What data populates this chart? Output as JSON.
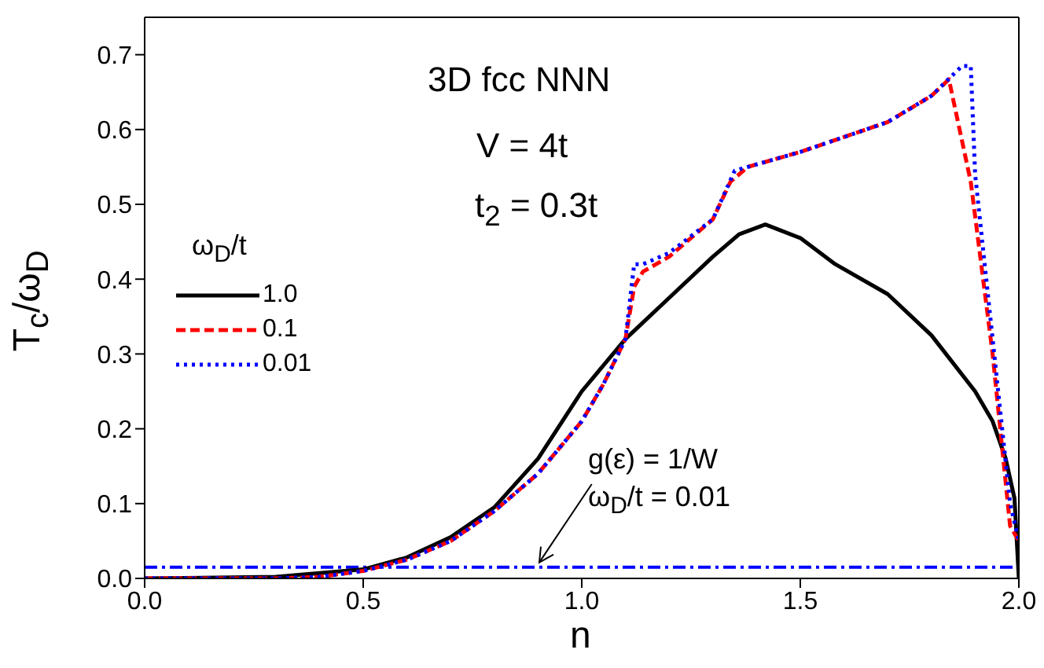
{
  "chart_data": {
    "type": "line",
    "xlabel": "n",
    "ylabel": "T$_{c}$/ω$_{D}$",
    "legend_title": "ω$_{D}$/t",
    "legend": "left",
    "marker": "none",
    "xlim": [
      0,
      2
    ],
    "xticks": [
      {
        "value": 0,
        "label": "0.0"
      },
      {
        "value": 0.5,
        "label": "0.5"
      },
      {
        "value": 1,
        "label": "1.0"
      },
      {
        "value": 1.5,
        "label": "1.5"
      },
      {
        "value": 2,
        "label": "2.0"
      }
    ],
    "ylim": [
      0,
      0.75
    ],
    "yticks": [
      {
        "value": 0,
        "label": "0.0"
      },
      0.1,
      0.2,
      0.3,
      0.4,
      0.5,
      0.6,
      0.7
    ],
    "series": [
      {
        "name": "1.0",
        "color": "#000000",
        "line_style": "solid",
        "x": [
          0,
          0.3,
          0.5,
          0.6,
          0.7,
          0.8,
          0.9,
          1.0,
          1.1,
          1.2,
          1.3,
          1.36,
          1.42,
          1.5,
          1.58,
          1.7,
          1.8,
          1.9,
          1.94,
          1.97,
          1.99,
          2.0
        ],
        "values": [
          0,
          0.002,
          0.012,
          0.028,
          0.055,
          0.095,
          0.16,
          0.25,
          0.32,
          0.375,
          0.43,
          0.46,
          0.473,
          0.455,
          0.42,
          0.38,
          0.325,
          0.25,
          0.21,
          0.16,
          0.107,
          0
        ]
      },
      {
        "name": "0.1",
        "color": "#ff0000",
        "line_style": "dashed",
        "x": [
          0,
          0.3,
          0.4,
          0.5,
          0.6,
          0.7,
          0.8,
          0.9,
          1.0,
          1.05,
          1.1,
          1.12,
          1.14,
          1.2,
          1.3,
          1.34,
          1.38,
          1.5,
          1.6,
          1.7,
          1.8,
          1.84,
          1.89,
          1.94,
          1.98,
          2.0
        ],
        "values": [
          0,
          0,
          0.002,
          0.01,
          0.025,
          0.05,
          0.09,
          0.14,
          0.21,
          0.26,
          0.32,
          0.39,
          0.41,
          0.43,
          0.48,
          0.53,
          0.55,
          0.57,
          0.59,
          0.61,
          0.645,
          0.667,
          0.53,
          0.3,
          0.07,
          0.05
        ]
      },
      {
        "name": "0.01",
        "color": "#0000ff",
        "line_style": "dotted",
        "x": [
          0,
          0.3,
          0.4,
          0.5,
          0.6,
          0.7,
          0.8,
          0.9,
          1.0,
          1.05,
          1.1,
          1.12,
          1.14,
          1.2,
          1.3,
          1.35,
          1.38,
          1.5,
          1.6,
          1.7,
          1.8,
          1.87,
          1.89,
          1.9,
          1.94,
          1.98,
          2.0
        ],
        "values": [
          0,
          0,
          0.002,
          0.01,
          0.025,
          0.05,
          0.09,
          0.14,
          0.21,
          0.26,
          0.32,
          0.42,
          0.42,
          0.435,
          0.48,
          0.545,
          0.55,
          0.57,
          0.59,
          0.61,
          0.645,
          0.685,
          0.685,
          0.54,
          0.32,
          0.1,
          0.05
        ]
      }
    ],
    "ref_lines": [
      {
        "axis": "y",
        "value": 0.015,
        "color": "#0000ff",
        "line_style": "dashed"
      }
    ],
    "annotations": [
      "3D fcc  NNN",
      "V = 4t",
      "t$_{2}$ = 0.3t",
      {
        "text": "g(ε) = 1/W",
        "x": 0.9,
        "y": 0.015
      },
      "ω$_{D}$/t = 0.01"
    ]
  }
}
